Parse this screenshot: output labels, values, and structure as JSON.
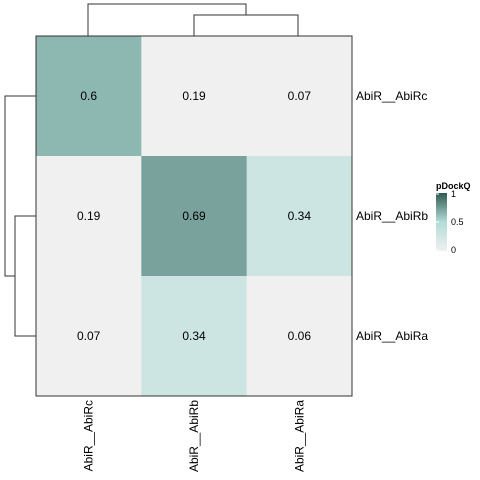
{
  "chart_data": {
    "type": "heatmap",
    "rows": [
      "AbiR__AbiRc",
      "AbiR__AbiRb",
      "AbiR__AbiRa"
    ],
    "columns": [
      "AbiR__AbiRc",
      "AbiR__AbiRb",
      "AbiR__AbiRa"
    ],
    "values": [
      [
        0.6,
        0.19,
        0.07
      ],
      [
        0.19,
        0.69,
        0.34
      ],
      [
        0.07,
        0.34,
        0.06
      ]
    ],
    "cell_labels": [
      [
        "0.6",
        "0.19",
        "0.07"
      ],
      [
        "0.19",
        "0.69",
        "0.34"
      ],
      [
        "0.07",
        "0.34",
        "0.06"
      ]
    ],
    "legend": {
      "title": "pDockQ",
      "ticks": [
        "1",
        "0.5",
        "0"
      ],
      "range": [
        0,
        1
      ],
      "placement": "right"
    },
    "colors": {
      "low": "#f0f0f0",
      "mid": "#b3dcd8",
      "high": "#2f5b4f"
    },
    "dendrograms": {
      "row": "left",
      "column": "top"
    }
  }
}
